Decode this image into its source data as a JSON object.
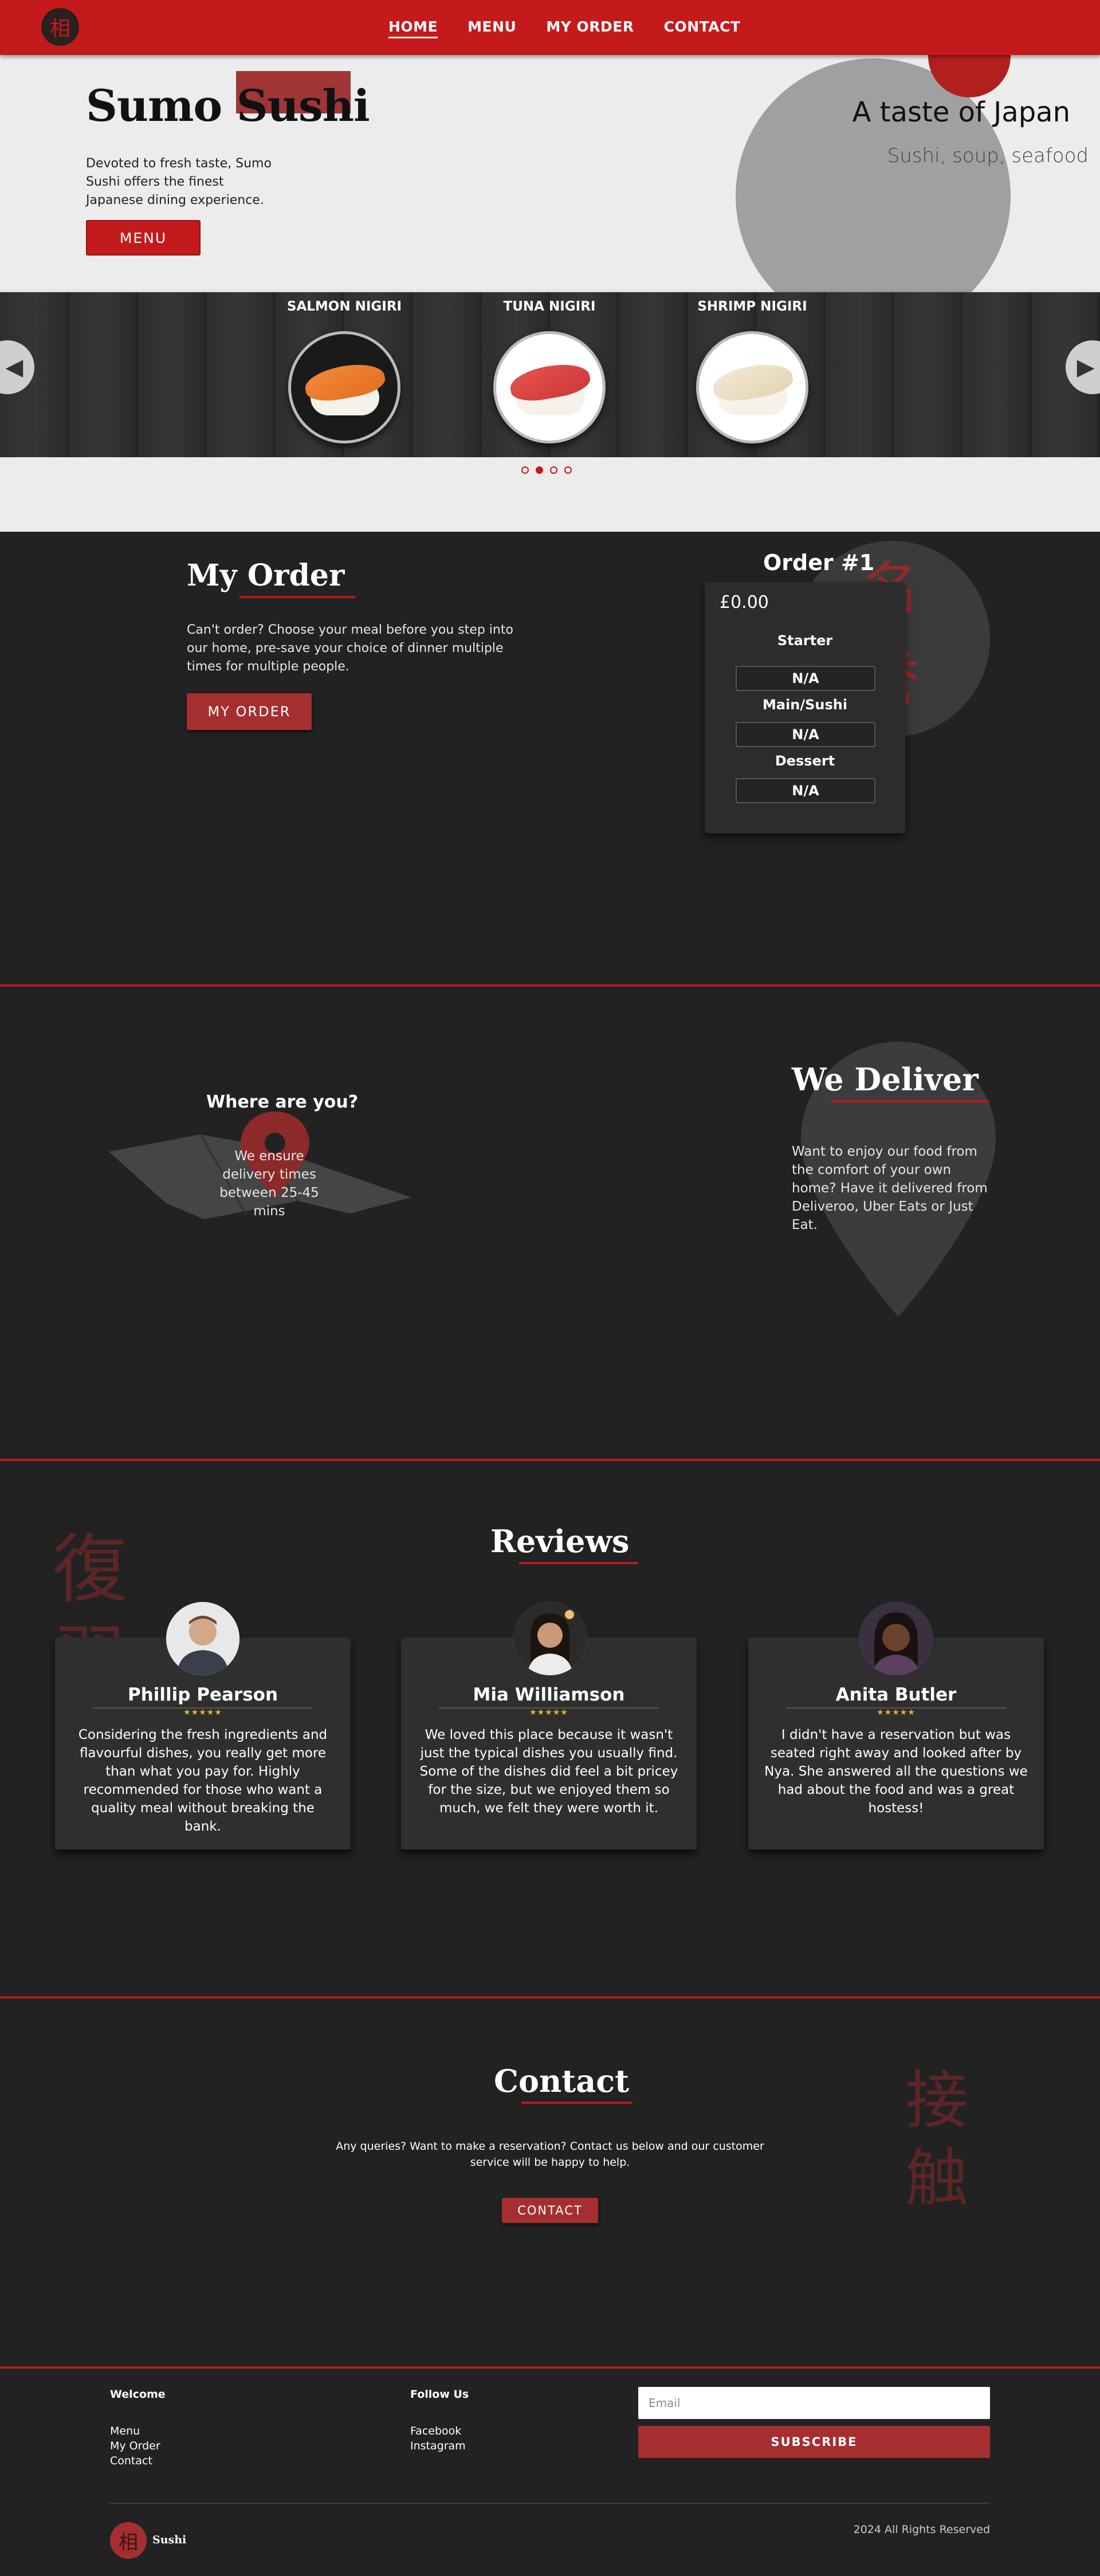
{
  "nav": {
    "logo_glyph": "相",
    "links": [
      {
        "label": "HOME",
        "active": true
      },
      {
        "label": "MENU",
        "active": false
      },
      {
        "label": "MY ORDER",
        "active": false
      },
      {
        "label": "CONTACT",
        "active": false
      }
    ]
  },
  "hero": {
    "title": "Sumo Sushi",
    "description": "Devoted to fresh taste, Sumo Sushi offers the finest Japanese dining experience.",
    "button_label": "MENU",
    "tagline": "A taste of Japan",
    "subtagline": "Sushi, soup, seafood"
  },
  "carousel": {
    "prev_icon": "◀",
    "next_icon": "▶",
    "items": [
      {
        "label": "SALMON NIGIRI"
      },
      {
        "label": "TUNA NIGIRI"
      },
      {
        "label": "SHRIMP NIGIRI"
      }
    ],
    "page_count": 4,
    "active_page": 2
  },
  "order": {
    "title": "My Order",
    "description": "Can't order? Choose your meal before you step into our home, pre-save your choice of dinner multiple times for multiple people.",
    "button_label": "MY ORDER",
    "kanji": "名誉",
    "card_title": "Order #1",
    "price": "£0.00",
    "courses": [
      {
        "label": "Starter",
        "value": "N/A"
      },
      {
        "label": "Main/Sushi",
        "value": "N/A"
      },
      {
        "label": "Dessert",
        "value": "N/A"
      }
    ]
  },
  "deliver": {
    "where_title": "Where are you?",
    "where_desc": "We ensure delivery times between 25-45 mins",
    "title": "We Deliver",
    "description": "Want to enjoy our food from the comfort of your own home? Have it delivered from Deliveroo, Uber Eats or Just Eat."
  },
  "reviews": {
    "kanji": "復習",
    "title": "Reviews",
    "stars": "★★★★★",
    "items": [
      {
        "name": "Phillip Pearson",
        "text": "Considering the fresh ingredients and flavourful dishes, you really get more than what you pay for. Highly recommended for those who want a quality meal without breaking the bank."
      },
      {
        "name": "Mia Williamson",
        "text": "We loved this place because it wasn't just the typical dishes you usually find. Some of the dishes did feel a bit pricey for the size, but we enjoyed them so much, we felt they were worth it."
      },
      {
        "name": "Anita Butler",
        "text": "I didn't have a reservation but was seated right away and looked after by Nya. She answered all the questions we had about the food and was a great hostess!"
      }
    ]
  },
  "contact": {
    "kanji": "接触",
    "title": "Contact",
    "description": "Any queries? Want to make a reservation? Contact us below and our customer service will be happy to help.",
    "button_label": "CONTACT"
  },
  "footer": {
    "welcome_heading": "Welcome",
    "welcome_links": [
      "Menu",
      "My Order",
      "Contact"
    ],
    "follow_heading": "Follow Us",
    "follow_links": [
      "Facebook",
      "Instagram"
    ],
    "email_placeholder": "Email",
    "subscribe_label": "SUBSCRIBE",
    "logo_glyph": "相",
    "brand": "Sushi",
    "copyright": "2024 All Rights Reserved"
  },
  "colors": {
    "brand_red": "#c51a1b",
    "accent_red": "#a52f30",
    "dark_bg": "#222222",
    "light_bg": "#ececec"
  }
}
